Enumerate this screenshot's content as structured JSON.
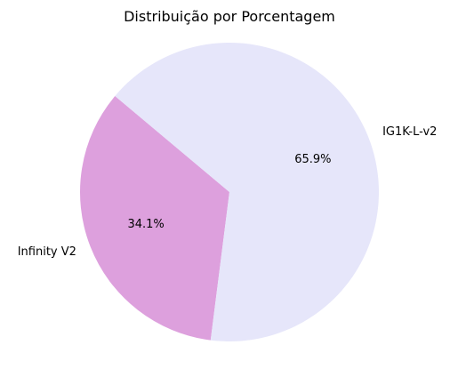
{
  "chart_data": {
    "type": "pie",
    "title": "Distribuição por Porcentagem",
    "slices": [
      {
        "label": "Infinity V2",
        "value": 34.1,
        "pct_text": "34.1%",
        "color": "#dda0dd"
      },
      {
        "label": "IG1K-L-v2",
        "value": 65.9,
        "pct_text": "65.9%",
        "color": "#e6e6fa"
      }
    ],
    "start_angle_deg": 140,
    "legend": "none",
    "grid": false
  }
}
